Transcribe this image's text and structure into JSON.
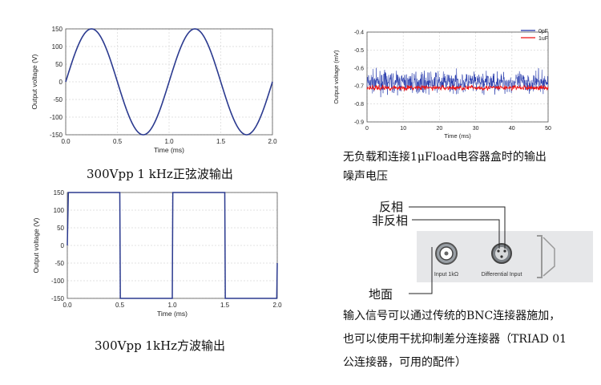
{
  "chart_data": [
    {
      "type": "line",
      "title": "",
      "xlabel": "Time (ms)",
      "ylabel": "Output voltage (V)",
      "xlim": [
        0,
        2
      ],
      "ylim": [
        -150,
        150
      ],
      "xticks": [
        "0.0",
        "0.5",
        "1.0",
        "1.5",
        "2.0"
      ],
      "yticks": [
        "150",
        "100",
        "50",
        "0",
        "-50",
        "-100",
        "-150"
      ],
      "series": [
        {
          "shape": "sine",
          "amplitude": 150,
          "frequency_per_ms": 1,
          "color": "#2b3a8f"
        }
      ],
      "caption": "300Vpp 1 kHz正弦波输出"
    },
    {
      "type": "line",
      "title": "",
      "xlabel": "Time (ms)",
      "ylabel": "Output voltage (V)",
      "xlim": [
        0,
        2
      ],
      "ylim": [
        -150,
        150
      ],
      "xticks": [
        "0.0",
        "0.5",
        "1.0",
        "1.5",
        "2.0"
      ],
      "yticks": [
        "150",
        "100",
        "50",
        "0",
        "-50",
        "-100",
        "-150"
      ],
      "series": [
        {
          "shape": "square",
          "amplitude": 150,
          "frequency_per_ms": 1,
          "color": "#2b3a8f"
        }
      ],
      "caption": "300Vpp 1kHz方波输出"
    },
    {
      "type": "line",
      "title": "",
      "xlabel": "Time (ms)",
      "ylabel": "Output voltage (mV)",
      "xlim": [
        0,
        50
      ],
      "ylim": [
        -0.9,
        -0.4
      ],
      "xticks": [
        "0",
        "10",
        "20",
        "30",
        "40",
        "50"
      ],
      "yticks": [
        "-0.4",
        "-0.5",
        "-0.6",
        "-0.7",
        "-0.8",
        "-0.9"
      ],
      "legend_position": "top-right",
      "series": [
        {
          "name": "0pF",
          "color": "#1a2fa8",
          "mean": -0.68,
          "spread": 0.1
        },
        {
          "name": "1uF",
          "color": "#ee1111",
          "mean": -0.71,
          "spread": 0.025
        }
      ],
      "caption": "无负载和连接1μFload电容器盒时的输出噪声电压"
    }
  ],
  "noise_caption": {
    "line1": "无负载和连接1μFload电容器盒时的输出",
    "line2": "噪声电压"
  },
  "connector": {
    "label_inverting": "反相",
    "label_noninverting": "非反相",
    "label_ground": "地面",
    "panel_label_bnc": "Input 1kΩ",
    "panel_label_diff": "Differential Input"
  },
  "description": {
    "line1": "输入信号可以通过传统的BNC连接器施加，",
    "line2": "也可以使用干扰抑制差分连接器（TRIAD 01",
    "line3": "公连接器，可用的配件）"
  }
}
